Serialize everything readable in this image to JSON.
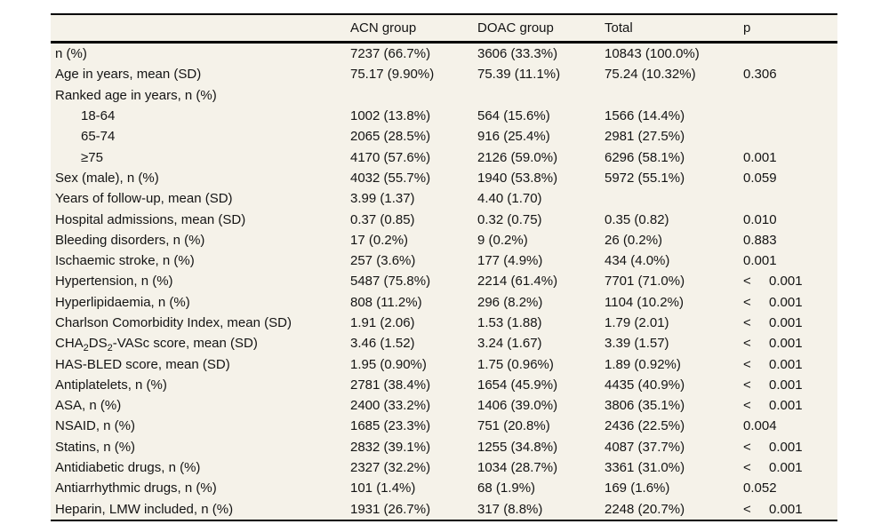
{
  "page": {
    "background_color": "#ffffff",
    "table_background_color": "#f5f2e9",
    "rule_color": "#000000",
    "text_color": "#141414"
  },
  "table": {
    "columns": [
      "",
      "ACN group",
      "DOAC group",
      "Total",
      "p"
    ],
    "rows": [
      {
        "label": "n (%)",
        "indent": false,
        "values": [
          "7237 (66.7%)",
          "3606 (33.3%)",
          "10843 (100.0%)",
          ""
        ]
      },
      {
        "label": "Age in years, mean (SD)",
        "indent": false,
        "values": [
          "75.17 (9.90%)",
          "75.39 (11.1%)",
          "75.24 (10.32%)",
          "0.306"
        ]
      },
      {
        "label": "Ranked age in years, n (%)",
        "indent": false,
        "values": [
          "",
          "",
          "",
          ""
        ]
      },
      {
        "label": "18-64",
        "indent": true,
        "values": [
          "1002 (13.8%)",
          "564 (15.6%)",
          "1566 (14.4%)",
          ""
        ]
      },
      {
        "label": "65-74",
        "indent": true,
        "values": [
          "2065 (28.5%)",
          "916 (25.4%)",
          "2981 (27.5%)",
          ""
        ]
      },
      {
        "label": "≥75",
        "indent": true,
        "values": [
          "4170 (57.6%)",
          "2126 (59.0%)",
          "6296 (58.1%)",
          "0.001"
        ]
      },
      {
        "label": "Sex (male), n (%)",
        "indent": false,
        "values": [
          "4032 (55.7%)",
          "1940 (53.8%)",
          "5972 (55.1%)",
          "0.059"
        ]
      },
      {
        "label": "Years of follow-up, mean (SD)",
        "indent": false,
        "values": [
          "3.99 (1.37)",
          "4.40 (1.70)",
          "",
          ""
        ]
      },
      {
        "label": "Hospital admissions, mean (SD)",
        "indent": false,
        "values": [
          "0.37 (0.85)",
          "0.32 (0.75)",
          "0.35 (0.82)",
          "0.010"
        ]
      },
      {
        "label": "Bleeding disorders, n (%)",
        "indent": false,
        "values": [
          "17 (0.2%)",
          "9 (0.2%)",
          "26 (0.2%)",
          "0.883"
        ]
      },
      {
        "label": "Ischaemic stroke, n (%)",
        "indent": false,
        "values": [
          "257 (3.6%)",
          "177 (4.9%)",
          "434 (4.0%)",
          "0.001"
        ]
      },
      {
        "label": "Hypertension, n (%)",
        "indent": false,
        "values": [
          "5487 (75.8%)",
          "2214 (61.4%)",
          "7701 (71.0%)",
          "< 0.001"
        ]
      },
      {
        "label": "Hyperlipidaemia, n (%)",
        "indent": false,
        "values": [
          "808 (11.2%)",
          "296 (8.2%)",
          "1104 (10.2%)",
          "< 0.001"
        ]
      },
      {
        "label": "Charlson Comorbidity Index, mean (SD)",
        "indent": false,
        "values": [
          "1.91 (2.06)",
          "1.53 (1.88)",
          "1.79 (2.01)",
          "< 0.001"
        ]
      },
      {
        "label": "CHA₂DS₂-VASc score, mean (SD)",
        "indent": false,
        "values": [
          "3.46 (1.52)",
          "3.24 (1.67)",
          "3.39 (1.57)",
          "< 0.001"
        ]
      },
      {
        "label": "HAS-BLED score, mean (SD)",
        "indent": false,
        "values": [
          "1.95 (0.90%)",
          "1.75 (0.96%)",
          "1.89 (0.92%)",
          "< 0.001"
        ]
      },
      {
        "label": "Antiplatelets, n (%)",
        "indent": false,
        "values": [
          "2781 (38.4%)",
          "1654 (45.9%)",
          "4435 (40.9%)",
          "< 0.001"
        ]
      },
      {
        "label": "ASA, n (%)",
        "indent": false,
        "values": [
          "2400 (33.2%)",
          "1406 (39.0%)",
          "3806 (35.1%)",
          "< 0.001"
        ]
      },
      {
        "label": "NSAID, n (%)",
        "indent": false,
        "values": [
          "1685 (23.3%)",
          "751 (20.8%)",
          "2436 (22.5%)",
          "0.004"
        ]
      },
      {
        "label": "Statins, n (%)",
        "indent": false,
        "values": [
          "2832 (39.1%)",
          "1255 (34.8%)",
          "4087 (37.7%)",
          "< 0.001"
        ]
      },
      {
        "label": "Antidiabetic drugs, n (%)",
        "indent": false,
        "values": [
          "2327 (32.2%)",
          "1034 (28.7%)",
          "3361 (31.0%)",
          "< 0.001"
        ]
      },
      {
        "label": "Antiarrhythmic drugs, n (%)",
        "indent": false,
        "values": [
          "101 (1.4%)",
          "68 (1.9%)",
          "169 (1.6%)",
          "0.052"
        ]
      },
      {
        "label": "Heparin, LMW included, n (%)",
        "indent": false,
        "values": [
          "1931 (26.7%)",
          "317 (8.8%)",
          "2248 (20.7%)",
          "< 0.001"
        ]
      }
    ]
  }
}
